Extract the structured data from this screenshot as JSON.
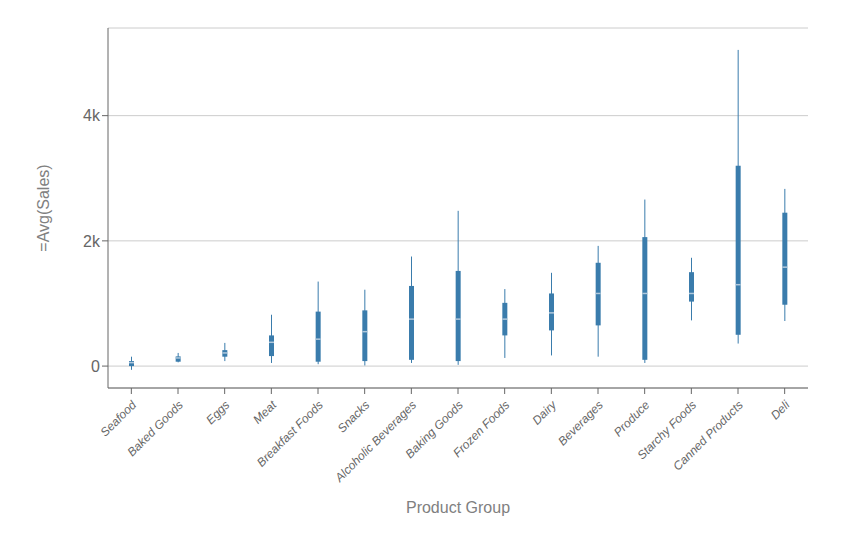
{
  "chart_data": {
    "type": "box",
    "xlabel": "Product Group",
    "ylabel": "=Avg(Sales)",
    "categories": [
      "Seafood",
      "Baked Goods",
      "Eggs",
      "Meat",
      "Breakfast Foods",
      "Snacks",
      "Alcoholic Beverages",
      "Baking Goods",
      "Frozen Foods",
      "Dairy",
      "Beverages",
      "Produce",
      "Starchy Foods",
      "Canned Products",
      "Deli"
    ],
    "values": [
      {
        "whisker_low": -60,
        "q1": 0,
        "median": 55,
        "q3": 80,
        "whisker_high": 150
      },
      {
        "whisker_low": 60,
        "q1": 70,
        "median": 130,
        "q3": 155,
        "whisker_high": 210
      },
      {
        "whisker_low": 80,
        "q1": 150,
        "median": 210,
        "q3": 255,
        "whisker_high": 370
      },
      {
        "whisker_low": 50,
        "q1": 160,
        "median": 380,
        "q3": 490,
        "whisker_high": 820
      },
      {
        "whisker_low": 30,
        "q1": 70,
        "median": 430,
        "q3": 870,
        "whisker_high": 1350
      },
      {
        "whisker_low": 10,
        "q1": 80,
        "median": 550,
        "q3": 890,
        "whisker_high": 1220
      },
      {
        "whisker_low": 50,
        "q1": 100,
        "median": 750,
        "q3": 1280,
        "whisker_high": 1750
      },
      {
        "whisker_low": 20,
        "q1": 80,
        "median": 750,
        "q3": 1520,
        "whisker_high": 2480
      },
      {
        "whisker_low": 130,
        "q1": 490,
        "median": 750,
        "q3": 1010,
        "whisker_high": 1230
      },
      {
        "whisker_low": 170,
        "q1": 570,
        "median": 850,
        "q3": 1160,
        "whisker_high": 1490
      },
      {
        "whisker_low": 150,
        "q1": 650,
        "median": 1160,
        "q3": 1650,
        "whisker_high": 1920
      },
      {
        "whisker_low": 50,
        "q1": 100,
        "median": 1160,
        "q3": 2060,
        "whisker_high": 2660
      },
      {
        "whisker_low": 730,
        "q1": 1030,
        "median": 1160,
        "q3": 1500,
        "whisker_high": 1730
      },
      {
        "whisker_low": 360,
        "q1": 500,
        "median": 1300,
        "q3": 3200,
        "whisker_high": 5050
      },
      {
        "whisker_low": 720,
        "q1": 980,
        "median": 1580,
        "q3": 2450,
        "whisker_high": 2830
      }
    ],
    "color": "#3a7cac",
    "median_color": "#b0c8dc",
    "ylim": [
      -350,
      5400
    ],
    "yticks": [
      0,
      {
        "value": 2000,
        "label": "2k"
      },
      {
        "value": 4000,
        "label": "4k"
      }
    ],
    "grid": true
  }
}
